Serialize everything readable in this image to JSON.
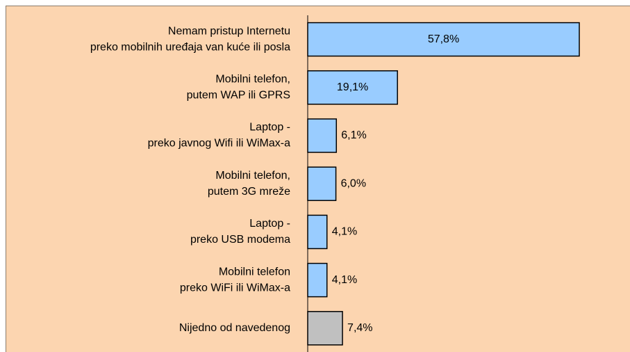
{
  "chart_data": {
    "type": "hbar",
    "categories": [
      [
        "Nemam pristup Internetu",
        "preko mobilnih uređaja van kuće ili posla"
      ],
      [
        "Mobilni telefon,",
        "putem WAP ili GPRS"
      ],
      [
        "Laptop -",
        "preko javnog Wifi ili WiMax-a"
      ],
      [
        "Mobilni telefon,",
        "putem 3G mreže"
      ],
      [
        "Laptop -",
        "preko USB modema"
      ],
      [
        "Mobilni telefon",
        "preko WiFi ili WiMax-a"
      ],
      [
        "Nijedno od navedenog"
      ]
    ],
    "values": [
      57.8,
      19.1,
      6.1,
      6.0,
      4.1,
      4.1,
      7.4
    ],
    "value_labels": [
      "57,8%",
      "19,1%",
      "6,1%",
      "6,0%",
      "4,1%",
      "4,1%",
      "7,4%"
    ],
    "colors": [
      "#99ccff",
      "#99ccff",
      "#99ccff",
      "#99ccff",
      "#99ccff",
      "#99ccff",
      "#c0c0c0"
    ],
    "xlim": [
      0,
      68
    ]
  }
}
